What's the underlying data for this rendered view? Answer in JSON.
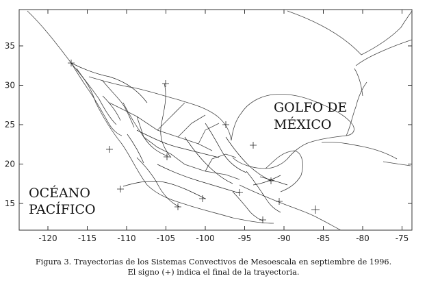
{
  "map": {
    "x_ticks": [
      "-120",
      "-115",
      "-110",
      "-105",
      "-100",
      "-95",
      "-90",
      "-85",
      "-80",
      "-75"
    ],
    "y_ticks": [
      "35",
      "30",
      "25",
      "20",
      "15"
    ],
    "gulf_label": [
      "GOLFO DE",
      "MÉXICO"
    ],
    "pacific_label": [
      "OCÉANO",
      "PACÍFICO"
    ]
  },
  "caption": {
    "line1": "Figura 3. Trayectorias de los Sistemas Convectivos de Mesoescala en septiembre de 1996.",
    "line2": "El signo (+) indica el final de la trayectoria."
  }
}
